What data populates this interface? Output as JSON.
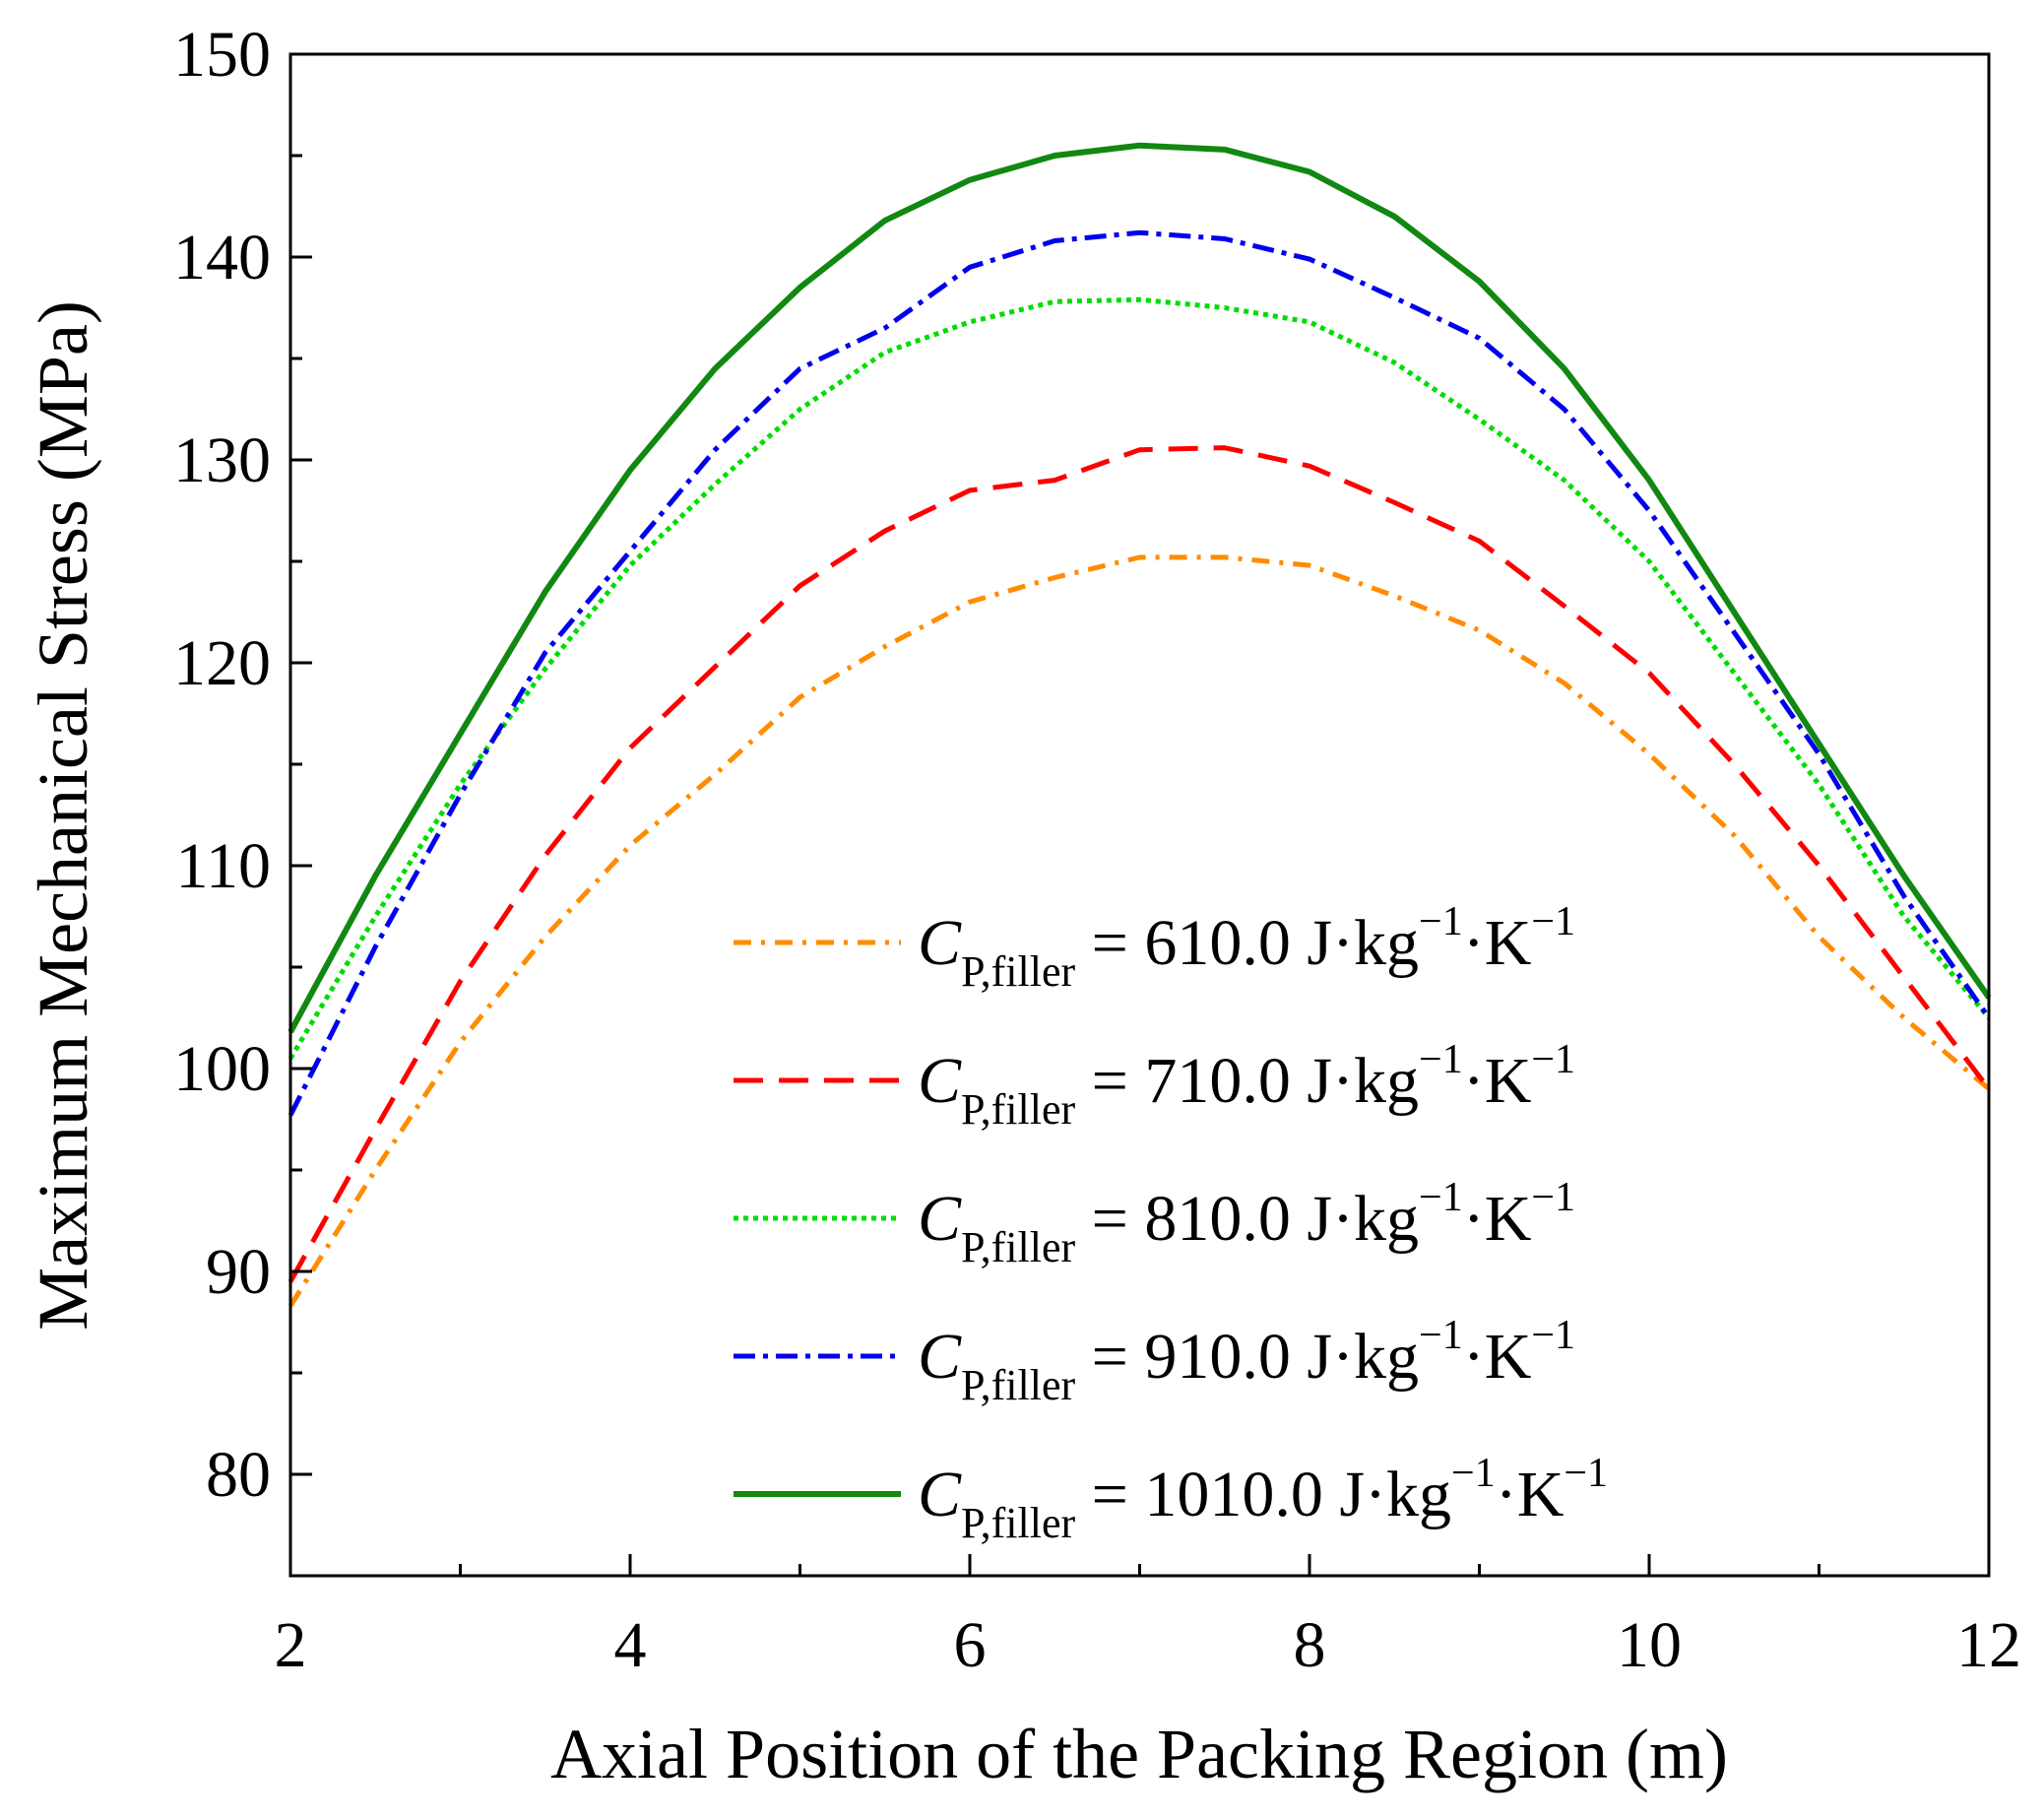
{
  "chart_data": {
    "type": "line",
    "xlabel": "Axial Position of the Packing Region (m)",
    "ylabel": "Maximum Mechanical Stress (MPa)",
    "xlim": [
      2,
      12
    ],
    "ylim": [
      75,
      150
    ],
    "xticks": [
      2,
      4,
      6,
      8,
      10,
      12
    ],
    "xtick_labels": [
      "2",
      "4",
      "6",
      "8",
      "10",
      "12"
    ],
    "yticks": [
      80,
      90,
      100,
      110,
      120,
      130,
      140,
      150
    ],
    "ytick_labels": [
      "80",
      "90",
      "100",
      "110",
      "120",
      "130",
      "140",
      "150"
    ],
    "legend_position": "bottom-right",
    "x": [
      2,
      2.5,
      3,
      3.5,
      4,
      4.5,
      5,
      5.5,
      6,
      6.5,
      7,
      7.5,
      8,
      8.5,
      9,
      9.5,
      10,
      10.5,
      11,
      11.5,
      12
    ],
    "series": [
      {
        "name": "C_P,filler = 610.0 J·kg⁻¹·K⁻¹",
        "label_symbol": "C",
        "label_sub": "P,filler",
        "label_value": "= 610.0 J·kg",
        "label_exp1": "−1",
        "label_unit2": "·K",
        "label_exp2": "−1",
        "color": "#ff8c00",
        "dash": "18 10 4 10",
        "values": [
          88.3,
          95.0,
          101.3,
          106.5,
          111.0,
          114.5,
          118.3,
          120.8,
          123.0,
          124.2,
          125.2,
          125.2,
          124.8,
          123.3,
          121.6,
          119.0,
          115.5,
          111.5,
          106.5,
          102.5,
          99.0
        ]
      },
      {
        "name": "C_P,filler = 710.0 J·kg⁻¹·K⁻¹",
        "label_symbol": "C",
        "label_sub": "P,filler",
        "label_value": "= 710.0 J·kg",
        "label_exp1": "−1",
        "label_unit2": "·K",
        "label_exp2": "−1",
        "color": "#ff0000",
        "dash": "30 16",
        "values": [
          89.5,
          97.0,
          104.3,
          110.5,
          115.8,
          119.8,
          123.8,
          126.5,
          128.5,
          129.0,
          130.5,
          130.6,
          129.7,
          127.9,
          126.0,
          122.8,
          119.5,
          115.0,
          110.0,
          104.5,
          99.0
        ]
      },
      {
        "name": "C_P,filler = 810.0 J·kg⁻¹·K⁻¹",
        "label_symbol": "C",
        "label_sub": "P,filler",
        "label_value": "= 810.0 J·kg",
        "label_exp1": "−1",
        "label_unit2": "·K",
        "label_exp2": "−1",
        "color": "#00dd00",
        "dash": "5 5",
        "values": [
          100.5,
          107.5,
          114.0,
          119.7,
          124.8,
          128.8,
          132.5,
          135.3,
          136.8,
          137.8,
          137.9,
          137.5,
          136.8,
          134.8,
          132.0,
          129.0,
          125.0,
          119.5,
          114.0,
          107.5,
          102.5
        ]
      },
      {
        "name": "C_P,filler = 910.0 J·kg⁻¹·K⁻¹",
        "label_symbol": "C",
        "label_sub": "P,filler",
        "label_value": "= 910.0 J·kg",
        "label_exp1": "−1",
        "label_unit2": "·K",
        "label_exp2": "−1",
        "color": "#0000ee",
        "dash": "22 8 5 8",
        "values": [
          97.7,
          106.0,
          113.5,
          120.5,
          125.5,
          130.5,
          134.5,
          136.5,
          139.5,
          140.8,
          141.2,
          140.9,
          139.9,
          138.0,
          136.0,
          132.5,
          127.5,
          121.5,
          115.5,
          108.5,
          102.5
        ]
      },
      {
        "name": "C_P,filler = 1010.0 J·kg⁻¹·K⁻¹",
        "label_symbol": "C",
        "label_sub": "P,filler",
        "label_value": "= 1010.0 J·kg",
        "label_exp1": "−1",
        "label_unit2": "·K",
        "label_exp2": "−1",
        "color": "#118811",
        "dash": "",
        "values": [
          101.8,
          109.5,
          116.5,
          123.5,
          129.5,
          134.5,
          138.5,
          141.8,
          143.8,
          145.0,
          145.5,
          145.3,
          144.2,
          142.0,
          138.8,
          134.5,
          129.0,
          122.5,
          116.0,
          109.5,
          103.5
        ]
      }
    ]
  }
}
